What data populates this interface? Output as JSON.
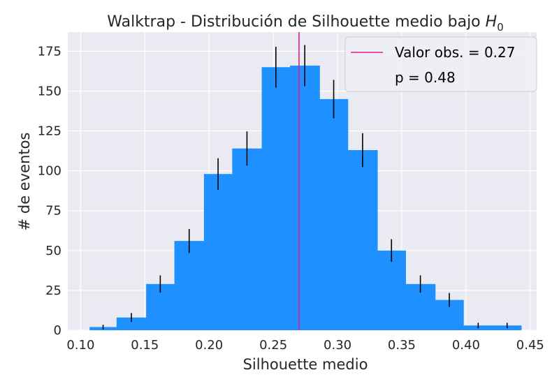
{
  "chart_data": {
    "type": "bar",
    "title": "Walktrap - Distribución de Silhouette medio bajo ",
    "title_math": "H",
    "title_math_sub": "0",
    "xlabel": "Silhouette medio",
    "ylabel": "# de eventos",
    "xlim": [
      0.09,
      0.455
    ],
    "ylim": [
      0,
      187
    ],
    "xticks": [
      0.1,
      0.15,
      0.2,
      0.25,
      0.3,
      0.35,
      0.4,
      0.45
    ],
    "xtick_labels": [
      "0.10",
      "0.15",
      "0.20",
      "0.25",
      "0.30",
      "0.35",
      "0.40",
      "0.45"
    ],
    "yticks": [
      0,
      25,
      50,
      75,
      100,
      125,
      150,
      175
    ],
    "ytick_labels": [
      "0",
      "25",
      "50",
      "75",
      "100",
      "125",
      "150",
      "175"
    ],
    "grid": true,
    "bar_color": "#1e90ff",
    "errorbar_color": "#000000",
    "obs_line_color": "#e6198c",
    "plot_bg": "#eaeaf2",
    "bins": [
      {
        "left": 0.107,
        "right": 0.128,
        "count": 2,
        "err": 1.4
      },
      {
        "left": 0.128,
        "right": 0.151,
        "count": 8,
        "err": 2.8
      },
      {
        "left": 0.151,
        "right": 0.173,
        "count": 29,
        "err": 5.4
      },
      {
        "left": 0.173,
        "right": 0.196,
        "count": 56,
        "err": 7.5
      },
      {
        "left": 0.196,
        "right": 0.218,
        "count": 98,
        "err": 9.9
      },
      {
        "left": 0.218,
        "right": 0.241,
        "count": 114,
        "err": 10.7
      },
      {
        "left": 0.241,
        "right": 0.263,
        "count": 165,
        "err": 12.8
      },
      {
        "left": 0.263,
        "right": 0.286,
        "count": 166,
        "err": 12.9
      },
      {
        "left": 0.286,
        "right": 0.308,
        "count": 145,
        "err": 12.0
      },
      {
        "left": 0.308,
        "right": 0.331,
        "count": 113,
        "err": 10.6
      },
      {
        "left": 0.331,
        "right": 0.353,
        "count": 50,
        "err": 7.1
      },
      {
        "left": 0.353,
        "right": 0.376,
        "count": 29,
        "err": 5.4
      },
      {
        "left": 0.376,
        "right": 0.398,
        "count": 19,
        "err": 4.4
      },
      {
        "left": 0.398,
        "right": 0.421,
        "count": 3,
        "err": 1.7
      },
      {
        "left": 0.421,
        "right": 0.443,
        "count": 3,
        "err": 1.7
      }
    ],
    "observed_value": 0.27,
    "legend": {
      "placement": "top-right",
      "line_label": "Valor obs. = 0.27",
      "p_label": "p = 0.48"
    }
  }
}
